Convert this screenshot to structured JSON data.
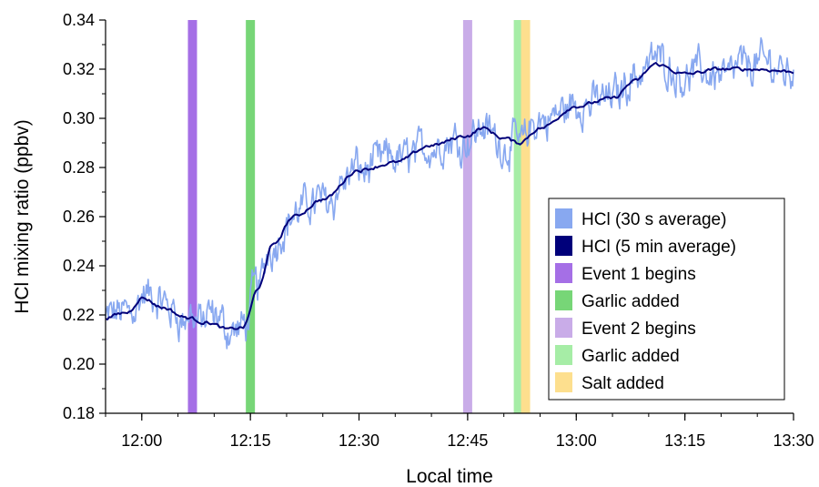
{
  "chart_data": {
    "type": "line",
    "xlabel": "Local time",
    "ylabel": "HCl mixing ratio (ppbv)",
    "xlim": [
      "11:55",
      "13:30"
    ],
    "ylim": [
      0.18,
      0.34
    ],
    "x_ticks": [
      "12:00",
      "12:15",
      "12:30",
      "12:45",
      "13:00",
      "13:15",
      "13:30"
    ],
    "y_ticks": [
      "0.18",
      "0.20",
      "0.22",
      "0.24",
      "0.26",
      "0.28",
      "0.30",
      "0.32",
      "0.34"
    ],
    "grid": false,
    "legend_position": "bottom-right",
    "series": [
      {
        "name": "HCl (30 s average)",
        "color": "#88a8f0",
        "style": "noisy",
        "x": [
          "11:55",
          "11:58",
          "12:00",
          "12:03",
          "12:06",
          "12:09",
          "12:12",
          "12:14",
          "12:16",
          "12:18",
          "12:21",
          "12:25",
          "12:30",
          "12:35",
          "12:40",
          "12:45",
          "12:47",
          "12:50",
          "12:52",
          "12:55",
          "13:00",
          "13:05",
          "13:08",
          "13:11",
          "13:15",
          "13:20",
          "13:25",
          "13:30"
        ],
        "values": [
          0.218,
          0.222,
          0.228,
          0.223,
          0.219,
          0.218,
          0.214,
          0.214,
          0.232,
          0.25,
          0.261,
          0.268,
          0.279,
          0.283,
          0.289,
          0.293,
          0.297,
          0.289,
          0.29,
          0.298,
          0.305,
          0.309,
          0.318,
          0.325,
          0.318,
          0.319,
          0.322,
          0.32
        ]
      },
      {
        "name": "HCl (5 min average)",
        "color": "#00007a",
        "style": "smooth",
        "x": [
          "11:55",
          "11:58",
          "12:00",
          "12:03",
          "12:06",
          "12:09",
          "12:12",
          "12:14",
          "12:16",
          "12:18",
          "12:21",
          "12:25",
          "12:30",
          "12:35",
          "12:40",
          "12:45",
          "12:47",
          "12:50",
          "12:52",
          "12:55",
          "13:00",
          "13:05",
          "13:08",
          "13:11",
          "13:15",
          "13:20",
          "13:25",
          "13:30"
        ],
        "values": [
          0.219,
          0.221,
          0.227,
          0.223,
          0.219,
          0.217,
          0.214,
          0.215,
          0.23,
          0.248,
          0.26,
          0.267,
          0.279,
          0.282,
          0.289,
          0.293,
          0.296,
          0.292,
          0.29,
          0.296,
          0.305,
          0.308,
          0.315,
          0.322,
          0.318,
          0.32,
          0.32,
          0.319
        ]
      }
    ],
    "events": [
      {
        "name": "Event 1 begins",
        "time": "12:07",
        "color": "#a56fe6"
      },
      {
        "name": "Garlic added",
        "time": "12:15",
        "color": "#77d677"
      },
      {
        "name": "Event 2 begins",
        "time": "12:45",
        "color": "#c9ace8"
      },
      {
        "name": "Garlic added",
        "time": "12:52",
        "color": "#a6eda6"
      },
      {
        "name": "Salt added",
        "time": "12:53",
        "color": "#fddf8e"
      }
    ]
  }
}
